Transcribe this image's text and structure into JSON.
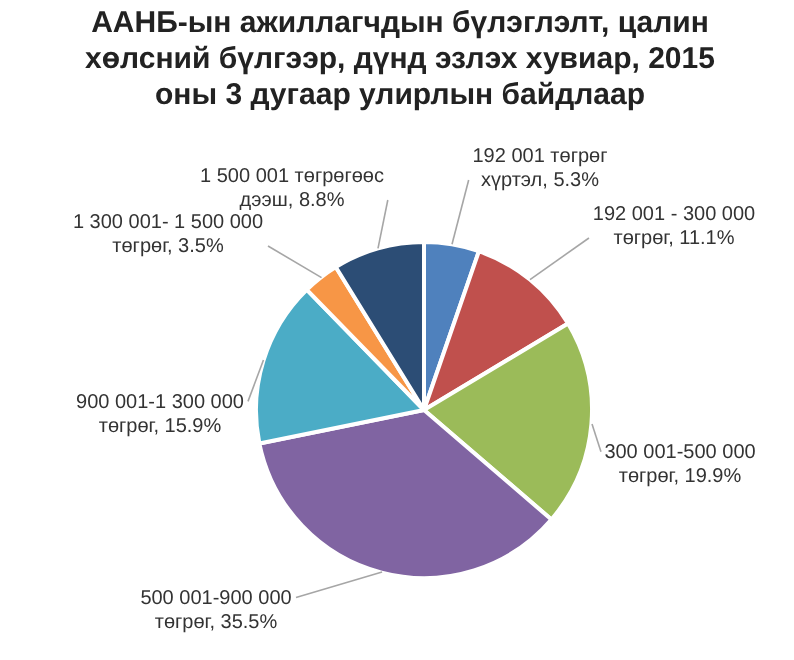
{
  "chart_data": {
    "type": "pie",
    "title": "ААНБ-ын ажиллагчдын бүлэглэлт, цалин хөлсний бүлгээр, дүнд эзлэх хувиар, 2015 оны 3 дугаар улирлын байдлаар",
    "categories": [
      "192 001 төгрөг хүртэл",
      "192 001 - 300 000 төгрөг",
      "300 001-500 000 төгрөг",
      "500 001-900 000 төгрөг",
      "900 001-1 300 000 төгрөг",
      "1 300 001- 1 500 000 төгрөг",
      "1 500 001 төгрөгөөс дээш"
    ],
    "values": [
      5.3,
      11.1,
      19.9,
      35.5,
      15.9,
      3.5,
      8.8
    ],
    "value_labels": [
      "5.3%",
      "11.1%",
      "19.9%",
      "35.5%",
      "15.9%",
      "3.5%",
      "8.8%"
    ],
    "colors": [
      "#4f81bd",
      "#c0504d",
      "#9bbb59",
      "#8064a2",
      "#4bacc6",
      "#f79646",
      "#2c4d75"
    ],
    "legend": false
  }
}
